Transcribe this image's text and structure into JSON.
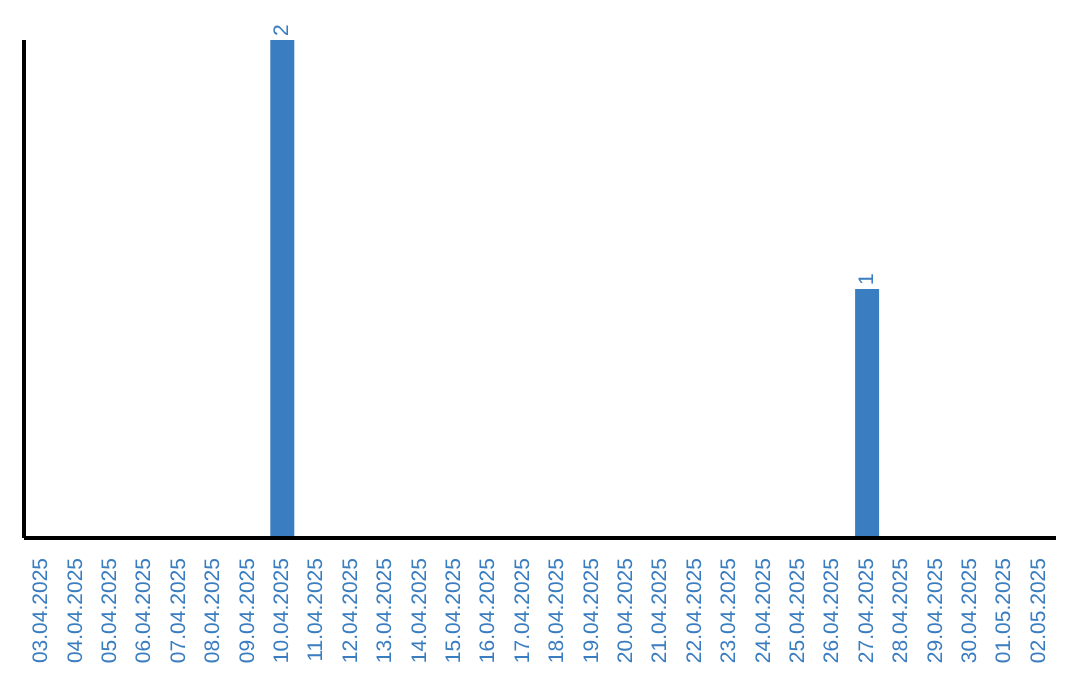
{
  "chart_data": {
    "type": "bar",
    "categories": [
      "03.04.2025",
      "04.04.2025",
      "05.04.2025",
      "06.04.2025",
      "07.04.2025",
      "08.04.2025",
      "09.04.2025",
      "10.04.2025",
      "11.04.2025",
      "12.04.2025",
      "13.04.2025",
      "14.04.2025",
      "15.04.2025",
      "16.04.2025",
      "17.04.2025",
      "18.04.2025",
      "19.04.2025",
      "20.04.2025",
      "21.04.2025",
      "22.04.2025",
      "23.04.2025",
      "24.04.2025",
      "25.04.2025",
      "26.04.2025",
      "27.04.2025",
      "28.04.2025",
      "29.04.2025",
      "30.04.2025",
      "01.05.2025",
      "02.05.2025"
    ],
    "values": [
      0,
      0,
      0,
      0,
      0,
      0,
      0,
      2,
      0,
      0,
      0,
      0,
      0,
      0,
      0,
      0,
      0,
      0,
      0,
      0,
      0,
      0,
      0,
      0,
      1,
      0,
      0,
      0,
      0,
      0
    ],
    "value_labels": [
      null,
      null,
      null,
      null,
      null,
      null,
      null,
      "2",
      null,
      null,
      null,
      null,
      null,
      null,
      null,
      null,
      null,
      null,
      null,
      null,
      null,
      null,
      null,
      null,
      "1",
      null,
      null,
      null,
      null,
      null
    ],
    "color": "#3a7dc0",
    "grid": false,
    "legend": false
  }
}
